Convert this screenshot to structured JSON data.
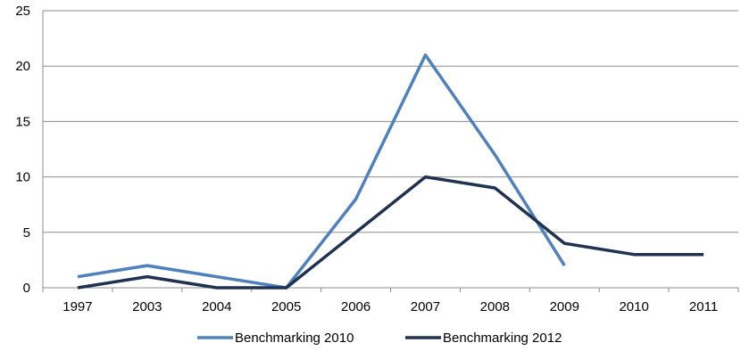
{
  "chart_data": {
    "type": "line",
    "title": "",
    "xlabel": "",
    "ylabel": "",
    "categories": [
      "1997",
      "2003",
      "2004",
      "2005",
      "2006",
      "2007",
      "2008",
      "2009",
      "2010",
      "2011"
    ],
    "ylim": [
      0,
      25
    ],
    "yticks": [
      0,
      5,
      10,
      15,
      20,
      25
    ],
    "grid": "horizontal",
    "legend": "bottom",
    "series": [
      {
        "name": "Benchmarking 2010",
        "color": "#4F81BD",
        "values": [
          1,
          2,
          1,
          0,
          8,
          21,
          12,
          2,
          null,
          null
        ]
      },
      {
        "name": "Benchmarking 2012",
        "color": "#1F3250",
        "values": [
          0,
          1,
          0,
          0,
          5,
          10,
          9,
          4,
          3,
          3
        ]
      }
    ]
  }
}
